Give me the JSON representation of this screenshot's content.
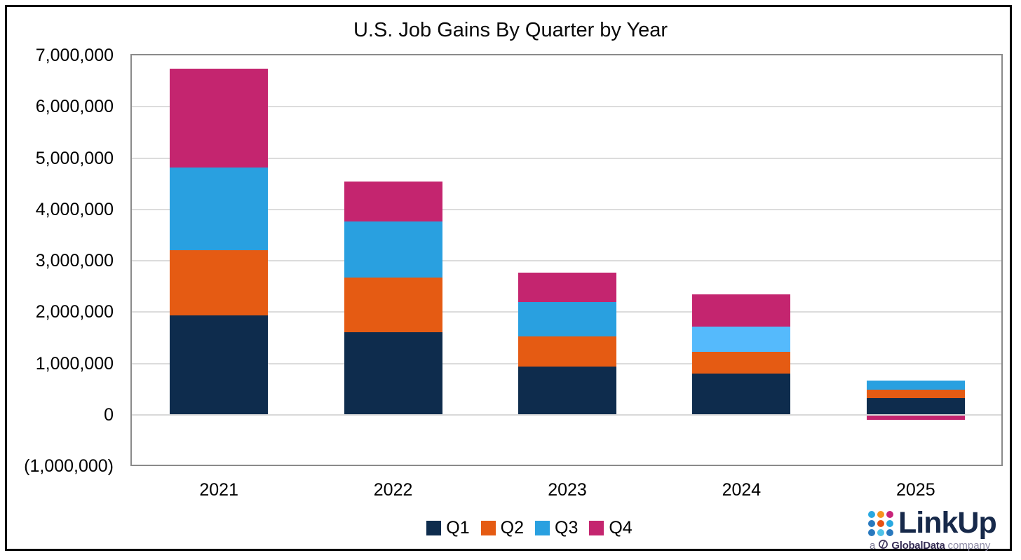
{
  "title": "U.S. Job Gains By Quarter by Year",
  "chart_data": {
    "type": "bar",
    "stacked": true,
    "title": "U.S. Job Gains By Quarter by Year",
    "xlabel": "",
    "ylabel": "",
    "categories": [
      "2021",
      "2022",
      "2023",
      "2024",
      "2025"
    ],
    "series": [
      {
        "name": "Q1",
        "color": "#0e2c4d",
        "values": [
          1930000,
          1610000,
          940000,
          800000,
          330000
        ]
      },
      {
        "name": "Q2",
        "color": "#e55b13",
        "values": [
          1270000,
          1060000,
          590000,
          420000,
          160000
        ]
      },
      {
        "name": "Q3",
        "color": "#29a0e0",
        "values": [
          1610000,
          1100000,
          670000,
          490000,
          170000
        ],
        "point_colors": {
          "3": "#55bafc"
        }
      },
      {
        "name": "Q4",
        "color": "#c4256f",
        "values": [
          1930000,
          770000,
          570000,
          630000,
          -90000
        ]
      }
    ],
    "ylim": [
      -1000000,
      7000000
    ],
    "y_ticks": [
      "7,000,000",
      "6,000,000",
      "5,000,000",
      "4,000,000",
      "3,000,000",
      "2,000,000",
      "1,000,000",
      "0",
      "(1,000,000)"
    ],
    "y_tick_values": [
      7000000,
      6000000,
      5000000,
      4000000,
      3000000,
      2000000,
      1000000,
      0,
      -1000000
    ],
    "grid": true,
    "legend_position": "bottom"
  },
  "logo": {
    "wordmark": "LinkUp",
    "tagline_prefix": "a",
    "tagline_brand": "GlobalData",
    "tagline_suffix": "company",
    "wordmark_color": "#17294a",
    "dot_rows": [
      [
        "#29a8e0",
        "#f7941e",
        "#c9247a"
      ],
      [
        "#2979be",
        "#e85113",
        "#29a8e0"
      ],
      [
        "#2979be",
        "#4fc3e8",
        "#2979be"
      ]
    ]
  }
}
